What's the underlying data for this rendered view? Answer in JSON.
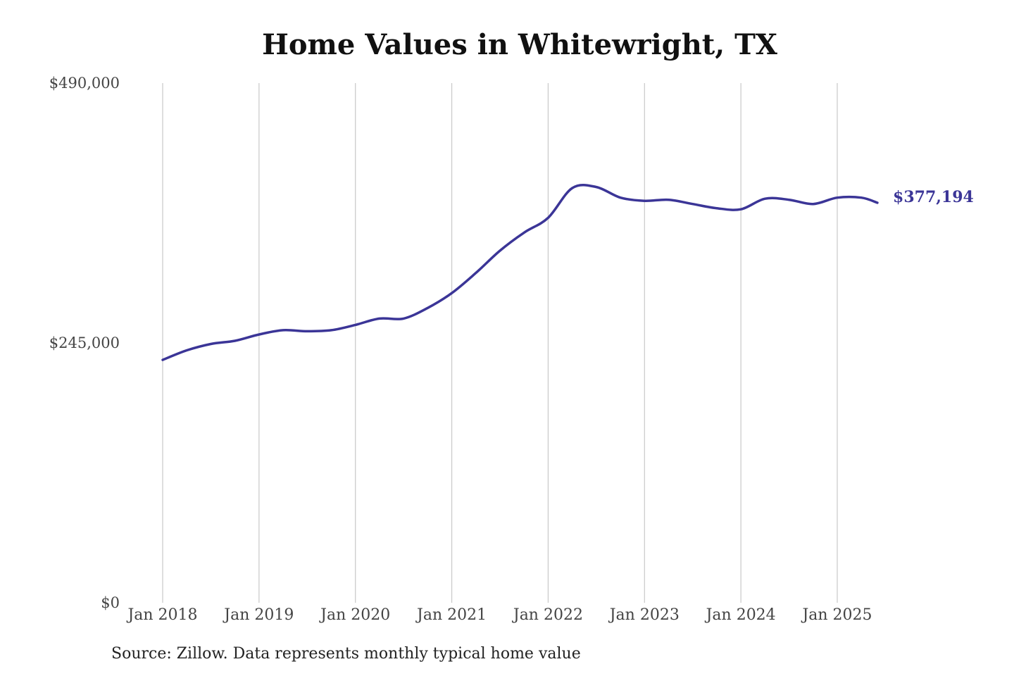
{
  "chart_data": {
    "type": "line",
    "title": "Home Values in Whitewright, TX",
    "source": "Source: Zillow. Data represents monthly typical home value",
    "xlabel": "",
    "ylabel": "",
    "ylim": [
      0,
      490000
    ],
    "y_ticks": [
      {
        "value": 0,
        "label": "$0"
      },
      {
        "value": 245000,
        "label": "$245,000"
      },
      {
        "value": 490000,
        "label": "$490,000"
      }
    ],
    "x_ticks": [
      {
        "year": 2018,
        "label": "Jan 2018"
      },
      {
        "year": 2019,
        "label": "Jan 2019"
      },
      {
        "year": 2020,
        "label": "Jan 2020"
      },
      {
        "year": 2021,
        "label": "Jan 2021"
      },
      {
        "year": 2022,
        "label": "Jan 2022"
      },
      {
        "year": 2023,
        "label": "Jan 2023"
      },
      {
        "year": 2024,
        "label": "Jan 2024"
      },
      {
        "year": 2025,
        "label": "Jan 2025"
      }
    ],
    "grid": "vertical",
    "series": [
      {
        "color": "#3b3597",
        "end_label": "$377,194",
        "x": [
          "2018-01",
          "2018-04",
          "2018-07",
          "2018-10",
          "2019-01",
          "2019-04",
          "2019-07",
          "2019-10",
          "2020-01",
          "2020-04",
          "2020-07",
          "2020-10",
          "2021-01",
          "2021-04",
          "2021-07",
          "2021-10",
          "2022-01",
          "2022-04",
          "2022-07",
          "2022-10",
          "2023-01",
          "2023-04",
          "2023-07",
          "2023-10",
          "2024-01",
          "2024-04",
          "2024-07",
          "2024-10",
          "2025-01",
          "2025-04",
          "2025-06"
        ],
        "values": [
          229000,
          238000,
          244000,
          247000,
          253000,
          257000,
          256000,
          257000,
          262000,
          268000,
          268000,
          278000,
          292000,
          311000,
          332000,
          349000,
          363000,
          391000,
          392000,
          382000,
          379000,
          380000,
          376000,
          372000,
          371000,
          381000,
          380000,
          376000,
          382000,
          382000,
          377194
        ]
      }
    ]
  }
}
